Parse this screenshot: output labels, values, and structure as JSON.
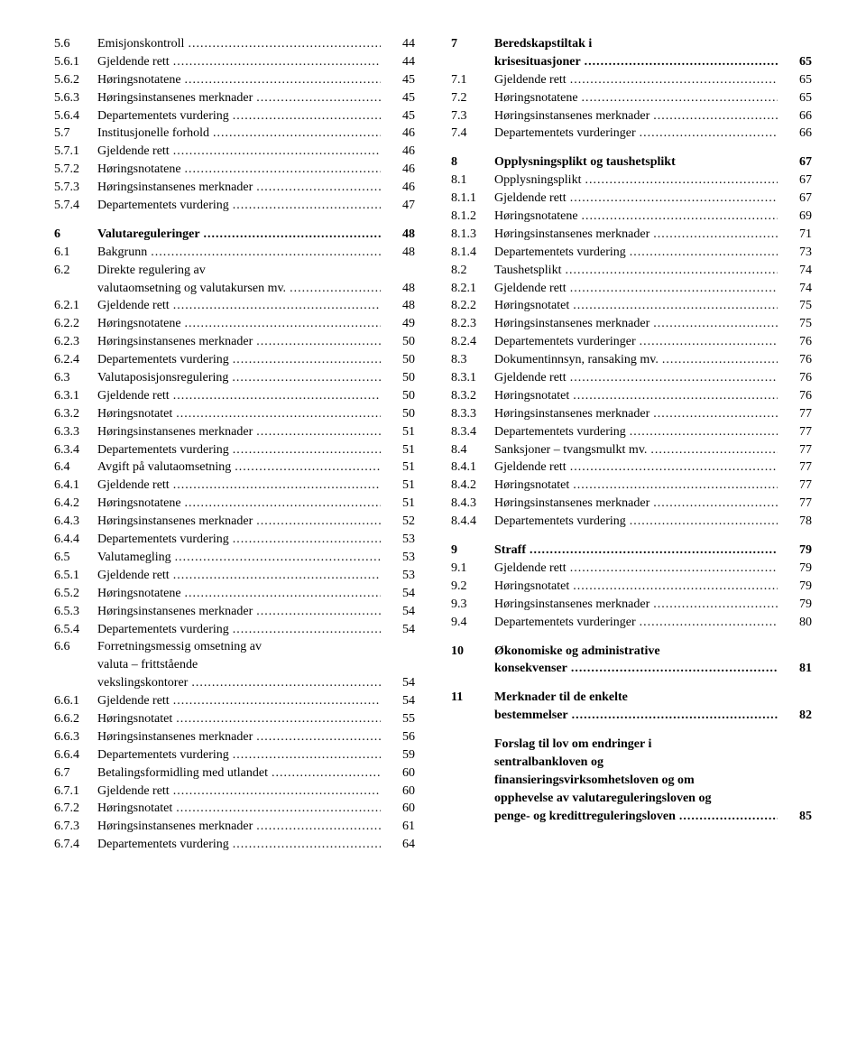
{
  "left": [
    {
      "n": "5.6",
      "t": "Emisjonskontroll",
      "p": "44"
    },
    {
      "n": "5.6.1",
      "t": "Gjeldende rett",
      "p": "44"
    },
    {
      "n": "5.6.2",
      "t": "Høringsnotatene",
      "p": "45"
    },
    {
      "n": "5.6.3",
      "t": "Høringsinstansenes merknader",
      "p": "45"
    },
    {
      "n": "5.6.4",
      "t": "Departementets vurdering",
      "p": "45"
    },
    {
      "n": "5.7",
      "t": "Institusjonelle forhold",
      "p": "46"
    },
    {
      "n": "5.7.1",
      "t": "Gjeldende rett",
      "p": "46"
    },
    {
      "n": "5.7.2",
      "t": "Høringsnotatene",
      "p": "46"
    },
    {
      "n": "5.7.3",
      "t": "Høringsinstansenes merknader",
      "p": "46"
    },
    {
      "n": "5.7.4",
      "t": "Departementets vurdering",
      "p": "47"
    },
    {
      "gap": true
    },
    {
      "n": "6",
      "t": "Valutareguleringer",
      "p": "48",
      "b": true
    },
    {
      "n": "6.1",
      "t": "Bakgrunn",
      "p": "48"
    },
    {
      "n": "6.2",
      "t": "Direkte regulering av",
      "nodots": true
    },
    {
      "n": "",
      "t": "valutaomsetning og valutakursen mv.",
      "p": "48"
    },
    {
      "n": "6.2.1",
      "t": "Gjeldende rett",
      "p": "48"
    },
    {
      "n": "6.2.2",
      "t": "Høringsnotatene",
      "p": "49"
    },
    {
      "n": "6.2.3",
      "t": "Høringsinstansenes merknader",
      "p": "50"
    },
    {
      "n": "6.2.4",
      "t": "Departementets vurdering",
      "p": "50"
    },
    {
      "n": "6.3",
      "t": "Valutaposisjonsregulering",
      "p": "50"
    },
    {
      "n": "6.3.1",
      "t": "Gjeldende rett",
      "p": "50"
    },
    {
      "n": "6.3.2",
      "t": "Høringsnotatet",
      "p": "50"
    },
    {
      "n": "6.3.3",
      "t": "Høringsinstansenes merknader",
      "p": "51"
    },
    {
      "n": "6.3.4",
      "t": "Departementets vurdering",
      "p": "51"
    },
    {
      "n": "6.4",
      "t": "Avgift på valutaomsetning",
      "p": "51"
    },
    {
      "n": "6.4.1",
      "t": "Gjeldende rett",
      "p": "51"
    },
    {
      "n": "6.4.2",
      "t": "Høringsnotatene",
      "p": "51"
    },
    {
      "n": "6.4.3",
      "t": "Høringsinstansenes merknader",
      "p": "52"
    },
    {
      "n": "6.4.4",
      "t": "Departementets vurdering",
      "p": "53"
    },
    {
      "n": "6.5",
      "t": "Valutamegling",
      "p": "53"
    },
    {
      "n": "6.5.1",
      "t": "Gjeldende rett",
      "p": "53"
    },
    {
      "n": "6.5.2",
      "t": "Høringsnotatene",
      "p": "54"
    },
    {
      "n": "6.5.3",
      "t": "Høringsinstansenes merknader",
      "p": "54"
    },
    {
      "n": "6.5.4",
      "t": "Departementets vurdering",
      "p": "54"
    },
    {
      "n": "6.6",
      "t": "Forretningsmessig omsetning av",
      "nodots": true
    },
    {
      "n": "",
      "t": "valuta – frittstående",
      "nodots": true
    },
    {
      "n": "",
      "t": "vekslingskontorer",
      "p": "54"
    },
    {
      "n": "6.6.1",
      "t": "Gjeldende rett",
      "p": "54"
    },
    {
      "n": "6.6.2",
      "t": "Høringsnotatet",
      "p": "55"
    },
    {
      "n": "6.6.3",
      "t": "Høringsinstansenes merknader",
      "p": "56"
    },
    {
      "n": "6.6.4",
      "t": "Departementets vurdering",
      "p": "59"
    },
    {
      "n": "6.7",
      "t": "Betalingsformidling med utlandet",
      "p": "60"
    },
    {
      "n": "6.7.1",
      "t": "Gjeldende rett",
      "p": "60"
    },
    {
      "n": "6.7.2",
      "t": "Høringsnotatet",
      "p": "60"
    },
    {
      "n": "6.7.3",
      "t": "Høringsinstansenes merknader",
      "p": "61"
    },
    {
      "n": "6.7.4",
      "t": "Departementets vurdering",
      "p": "64"
    }
  ],
  "right": [
    {
      "n": "7",
      "t": "Beredskapstiltak i",
      "b": true,
      "nodots": true
    },
    {
      "n": "",
      "t": "krisesituasjoner",
      "p": "65",
      "b": true
    },
    {
      "n": "7.1",
      "t": "Gjeldende rett",
      "p": "65"
    },
    {
      "n": "7.2",
      "t": "Høringsnotatene",
      "p": "65"
    },
    {
      "n": "7.3",
      "t": "Høringsinstansenes merknader",
      "p": "66"
    },
    {
      "n": "7.4",
      "t": "Departementets vurderinger",
      "p": "66"
    },
    {
      "gap": true
    },
    {
      "n": "8",
      "t": "Opplysningsplikt og taushetsplikt",
      "p": "67",
      "b": true,
      "nodots": true
    },
    {
      "n": "8.1",
      "t": "Opplysningsplikt",
      "p": "67"
    },
    {
      "n": "8.1.1",
      "t": "Gjeldende rett",
      "p": "67"
    },
    {
      "n": "8.1.2",
      "t": "Høringsnotatene",
      "p": "69"
    },
    {
      "n": "8.1.3",
      "t": "Høringsinstansenes merknader",
      "p": "71"
    },
    {
      "n": "8.1.4",
      "t": "Departementets vurdering",
      "p": "73"
    },
    {
      "n": "8.2",
      "t": "Taushetsplikt",
      "p": "74"
    },
    {
      "n": "8.2.1",
      "t": "Gjeldende rett",
      "p": "74"
    },
    {
      "n": "8.2.2",
      "t": "Høringsnotatet",
      "p": "75"
    },
    {
      "n": "8.2.3",
      "t": "Høringsinstansenes merknader",
      "p": "75"
    },
    {
      "n": "8.2.4",
      "t": "Departementets vurderinger",
      "p": "76"
    },
    {
      "n": "8.3",
      "t": "Dokumentinnsyn, ransaking mv.",
      "p": "76"
    },
    {
      "n": "8.3.1",
      "t": "Gjeldende rett",
      "p": "76"
    },
    {
      "n": "8.3.2",
      "t": "Høringsnotatet",
      "p": "76"
    },
    {
      "n": "8.3.3",
      "t": "Høringsinstansenes merknader",
      "p": "77"
    },
    {
      "n": "8.3.4",
      "t": "Departementets vurdering",
      "p": "77"
    },
    {
      "n": "8.4",
      "t": "Sanksjoner – tvangsmulkt mv.",
      "p": "77"
    },
    {
      "n": "8.4.1",
      "t": "Gjeldende rett",
      "p": "77"
    },
    {
      "n": "8.4.2",
      "t": "Høringsnotatet",
      "p": "77"
    },
    {
      "n": "8.4.3",
      "t": "Høringsinstansenes merknader",
      "p": "77"
    },
    {
      "n": "8.4.4",
      "t": "Departementets vurdering",
      "p": "78"
    },
    {
      "gap": true
    },
    {
      "n": "9",
      "t": "Straff",
      "p": "79",
      "b": true
    },
    {
      "n": "9.1",
      "t": "Gjeldende rett",
      "p": "79"
    },
    {
      "n": "9.2",
      "t": "Høringsnotatet",
      "p": "79"
    },
    {
      "n": "9.3",
      "t": "Høringsinstansenes merknader",
      "p": "79"
    },
    {
      "n": "9.4",
      "t": "Departementets vurderinger",
      "p": "80"
    },
    {
      "gap": true
    },
    {
      "n": "10",
      "t": "Økonomiske og administrative",
      "b": true,
      "nodots": true
    },
    {
      "n": "",
      "t": "konsekvenser",
      "p": "81",
      "b": true
    },
    {
      "gap": true
    },
    {
      "n": "11",
      "t": "Merknader til de enkelte",
      "b": true,
      "nodots": true
    },
    {
      "n": "",
      "t": "bestemmelser",
      "p": "82",
      "b": true
    },
    {
      "gap": true
    },
    {
      "n": "",
      "t": "Forslag til lov om endringer i",
      "b": true,
      "nodots": true
    },
    {
      "n": "",
      "t": "sentralbankloven og",
      "b": true,
      "nodots": true
    },
    {
      "n": "",
      "t": "finansieringsvirksomhetsloven og om",
      "b": true,
      "nodots": true
    },
    {
      "n": "",
      "t": "opphevelse av valutareguleringsloven og",
      "b": true,
      "nodots": true
    },
    {
      "n": "",
      "t": "penge- og kredittreguleringsloven",
      "p": "85",
      "b": true
    }
  ]
}
